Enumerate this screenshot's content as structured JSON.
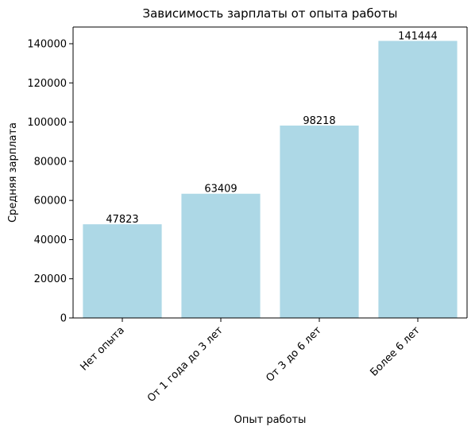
{
  "chart_data": {
    "type": "bar",
    "title": "Зависимость зарплаты от опыта работы",
    "xlabel": "Опыт работы",
    "ylabel": "Средняя зарплата",
    "categories": [
      "Нет опыта",
      "От 1 года до 3 лет",
      "От 3 до 6 лет",
      "Более 6 лет"
    ],
    "values": [
      47823,
      63409,
      98218,
      141444
    ],
    "data_labels": [
      "47823",
      "63409",
      "98218",
      "141444"
    ],
    "ylim": [
      0,
      148522
    ],
    "yticks": [
      0,
      20000,
      40000,
      60000,
      80000,
      100000,
      120000,
      140000
    ],
    "ytick_labels": [
      "0",
      "20000",
      "40000",
      "60000",
      "80000",
      "100000",
      "120000",
      "140000"
    ],
    "xtick_rotation": 45,
    "grid": false,
    "bar_color": "#add8e6"
  }
}
